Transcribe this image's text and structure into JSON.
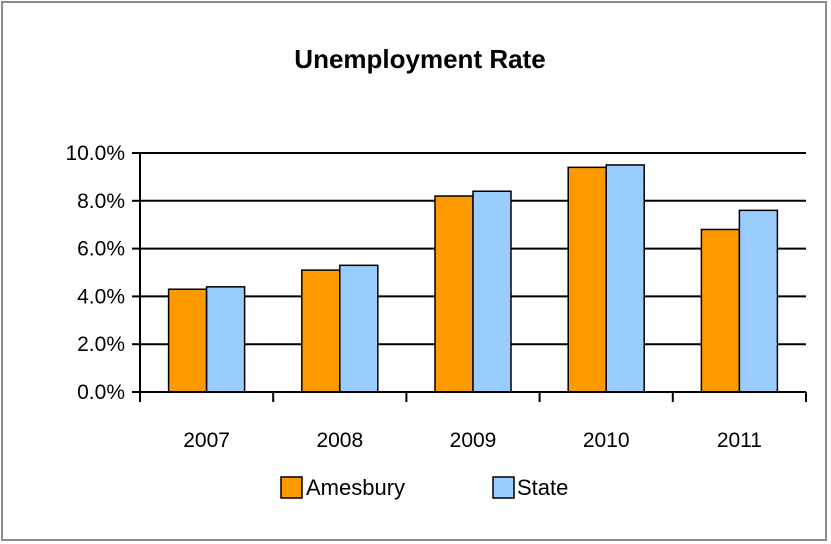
{
  "chart_data": {
    "type": "bar",
    "title": "Unemployment Rate",
    "categories": [
      "2007",
      "2008",
      "2009",
      "2010",
      "2011"
    ],
    "series": [
      {
        "name": "Amesbury",
        "values": [
          4.3,
          5.1,
          8.2,
          9.4,
          6.8
        ],
        "color": "#FF9900"
      },
      {
        "name": "State",
        "values": [
          4.4,
          5.3,
          8.4,
          9.5,
          7.6
        ],
        "color": "#99CCFF"
      }
    ],
    "ylim": [
      0,
      10
    ],
    "yticks": [
      "0.0%",
      "2.0%",
      "4.0%",
      "6.0%",
      "8.0%",
      "10.0%"
    ],
    "ytick_values": [
      0,
      2,
      4,
      6,
      8,
      10
    ],
    "grid": true,
    "legend": "bottom"
  }
}
